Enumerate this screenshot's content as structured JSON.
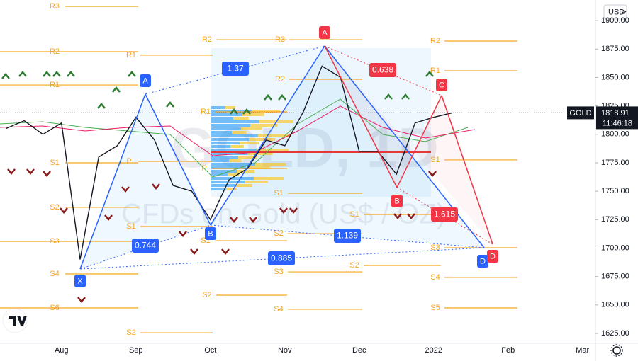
{
  "chart_data": {
    "type": "line",
    "currency": "USD",
    "watermark": "GOLD, 1D",
    "subtitle_watermark": "CFDs on Gold (US$ / OZ)",
    "categories": [
      null,
      null,
      null,
      "Aug",
      null,
      null,
      null,
      "Sep",
      null,
      null,
      null,
      "Oct",
      null,
      null,
      null,
      "Nov",
      null,
      null,
      null,
      "Dec",
      null,
      null,
      null,
      "2022",
      null,
      null,
      null,
      "Feb",
      null,
      null,
      null,
      "Mar"
    ],
    "series": [
      {
        "name": "GOLD",
        "color": "#131722",
        "values": [
          1805,
          1812,
          1800,
          1810,
          1690,
          1780,
          1790,
          1815,
          1795,
          1755,
          1750,
          1725,
          1760,
          1770,
          1795,
          1790,
          1820,
          1860,
          1850,
          1785,
          1785,
          1765,
          1810,
          1815,
          1818.91,
          null,
          null,
          null,
          null,
          null,
          null,
          null
        ]
      }
    ],
    "last_time": "11:46:18",
    "ylim": [
      1616.3,
      1918.1
    ],
    "yticks": [
      {
        "value": 1625,
        "label": "1625.00"
      },
      {
        "value": 1650,
        "label": "1650.00"
      },
      {
        "value": 1675,
        "label": "1675.00"
      },
      {
        "value": 1700,
        "label": "1700.00"
      },
      {
        "value": 1725,
        "label": "1725.00"
      },
      {
        "value": 1750,
        "label": "1750.00"
      },
      {
        "value": 1775,
        "label": "1775.00"
      },
      {
        "value": 1800,
        "label": "1800.00"
      },
      {
        "value": 1825,
        "label": "1825.00"
      },
      {
        "value": 1850,
        "label": "1850.00"
      },
      {
        "value": 1875,
        "label": "1875.00"
      },
      {
        "value": 1900,
        "label": "1900.00"
      }
    ],
    "grid": false,
    "pattern_labels": {
      "blue": [
        "X",
        "A",
        "B",
        "D"
      ],
      "red": [
        "A",
        "B",
        "C",
        "D"
      ]
    },
    "ratios": [
      1.37,
      0.744,
      0.885,
      1.139,
      0.638,
      1.615
    ],
    "pivot_color": "#f5a623",
    "pivots": [
      {
        "label": "R3",
        "level": 1912.5
      },
      {
        "label": "R2",
        "level": 1872.7
      },
      {
        "label": "R1",
        "level": 1843.4
      },
      {
        "label": "S1",
        "level": 1775
      },
      {
        "label": "S2",
        "level": 1735.8
      },
      {
        "label": "S3",
        "level": 1705.9
      },
      {
        "label": "S4",
        "level": 1677.3
      },
      {
        "label": "S6",
        "level": 1647.4
      },
      {
        "label": "R1",
        "level": 1869.6
      },
      {
        "label": "P",
        "level": 1776.2
      },
      {
        "label": "S1",
        "level": 1719
      },
      {
        "label": "S2",
        "level": 1625.6
      },
      {
        "label": "R2",
        "level": 1883.2
      },
      {
        "label": "R1",
        "level": 1819.8
      },
      {
        "label": "P",
        "level": 1770
      },
      {
        "label": "S1",
        "level": 1706.5
      },
      {
        "label": "S2",
        "level": 1658.6
      },
      {
        "label": "R3",
        "level": 1883.2
      },
      {
        "label": "R2",
        "level": 1848.4
      },
      {
        "label": "S1",
        "level": 1748.2
      },
      {
        "label": "S2",
        "level": 1712.7
      },
      {
        "label": "S3",
        "level": 1679.1
      },
      {
        "label": "S4",
        "level": 1646.2
      },
      {
        "label": "S1",
        "level": 1729.5
      },
      {
        "label": "S2",
        "level": 1684.7
      },
      {
        "label": "R2",
        "level": 1882
      },
      {
        "label": "R1",
        "level": 1855.9
      },
      {
        "label": "S1",
        "level": 1777.5
      },
      {
        "label": "S3",
        "level": 1700.3
      },
      {
        "label": "S4",
        "level": 1674.2
      },
      {
        "label": "S5",
        "level": 1647.4
      }
    ]
  }
}
